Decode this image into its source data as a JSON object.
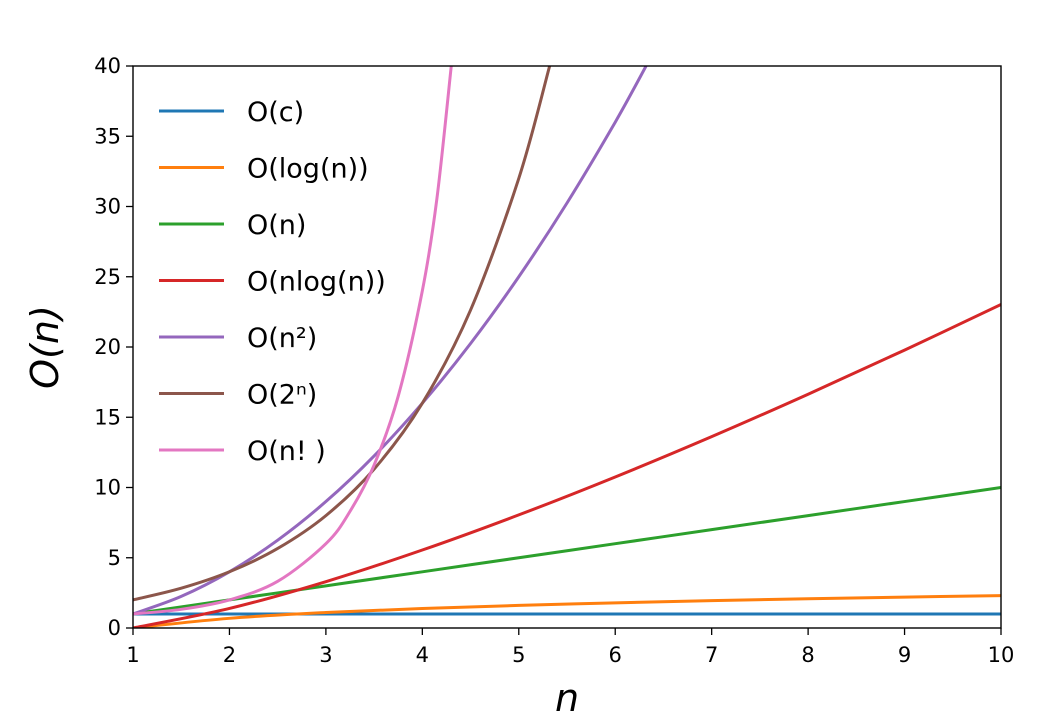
{
  "chart_data": {
    "type": "line",
    "title": "",
    "xlabel": "n",
    "ylabel": "O(n)",
    "xlim": [
      1,
      10
    ],
    "ylim": [
      0,
      40
    ],
    "xticks": [
      "1",
      "2",
      "3",
      "4",
      "5",
      "6",
      "7",
      "8",
      "9",
      "10"
    ],
    "yticks": [
      "0",
      "5",
      "10",
      "15",
      "20",
      "25",
      "30",
      "35",
      "40"
    ],
    "grid": false,
    "legend_position": "top-left",
    "series": [
      {
        "name": "O(c)",
        "color": "#1f77b4",
        "x": [
          1,
          2,
          3,
          4,
          5,
          6,
          7,
          8,
          9,
          10
        ],
        "y": [
          1,
          1,
          1,
          1,
          1,
          1,
          1,
          1,
          1,
          1
        ]
      },
      {
        "name": "O(log(n))",
        "color": "#ff7f0e",
        "x": [
          1,
          2,
          3,
          4,
          5,
          6,
          7,
          8,
          9,
          10
        ],
        "y": [
          0,
          0.69,
          1.1,
          1.39,
          1.61,
          1.79,
          1.95,
          2.08,
          2.2,
          2.3
        ]
      },
      {
        "name": "O(n)",
        "color": "#2ca02c",
        "x": [
          1,
          2,
          3,
          4,
          5,
          6,
          7,
          8,
          9,
          10
        ],
        "y": [
          1,
          2,
          3,
          4,
          5,
          6,
          7,
          8,
          9,
          10
        ]
      },
      {
        "name": "O(nlog(n))",
        "color": "#d62728",
        "x": [
          1,
          2,
          3,
          4,
          5,
          6,
          7,
          8,
          9,
          10
        ],
        "y": [
          0,
          1.39,
          3.3,
          5.55,
          8.05,
          10.75,
          13.62,
          16.64,
          19.78,
          23.03
        ]
      },
      {
        "name": "O(n²)",
        "color": "#9467bd",
        "x": [
          1,
          1.5,
          2,
          2.5,
          3,
          3.5,
          4,
          4.5,
          5,
          5.5,
          6,
          6.32
        ],
        "y": [
          1,
          2.25,
          4,
          6.25,
          9,
          12.25,
          16,
          20.25,
          25,
          30.25,
          36,
          40
        ]
      },
      {
        "name": "O(2ⁿ)",
        "color": "#8c564b",
        "x": [
          1,
          1.5,
          2,
          2.5,
          3,
          3.5,
          4,
          4.5,
          5,
          5.32
        ],
        "y": [
          2,
          2.83,
          4,
          5.66,
          8,
          11.31,
          16,
          22.63,
          32,
          40
        ]
      },
      {
        "name": "O(n! )",
        "color": "#e377c2",
        "x": [
          1,
          1.5,
          2,
          2.5,
          3,
          3.25,
          3.5,
          3.75,
          4,
          4.15,
          4.3
        ],
        "y": [
          1,
          1.33,
          2,
          3.32,
          6,
          8.3,
          11.6,
          16.5,
          24,
          30.5,
          40
        ]
      }
    ]
  }
}
